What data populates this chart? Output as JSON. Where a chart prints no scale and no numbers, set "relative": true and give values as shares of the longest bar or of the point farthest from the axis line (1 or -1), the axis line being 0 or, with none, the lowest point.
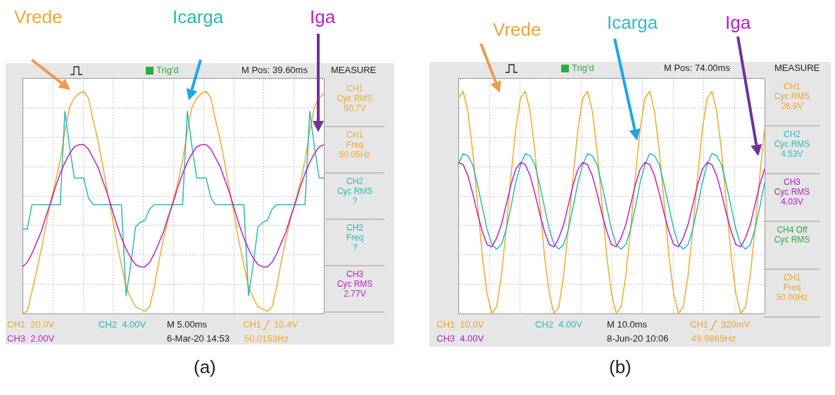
{
  "chart_data": [
    {
      "type": "line",
      "title": "(a)",
      "relative": true,
      "grid": true,
      "categories": [
        null,
        null,
        null,
        null,
        null,
        null,
        null,
        null,
        null,
        null,
        null,
        null,
        null,
        null,
        null,
        null,
        null,
        null,
        null,
        null,
        null,
        null,
        null,
        null,
        null,
        null,
        null,
        null,
        null,
        null,
        null,
        null,
        null,
        null,
        null,
        null,
        null,
        null,
        null,
        null,
        null,
        null,
        null,
        null,
        null,
        null,
        null,
        null,
        null,
        null,
        null,
        null,
        null,
        null,
        null,
        null,
        null,
        null,
        null,
        null,
        null,
        null,
        null,
        null,
        null
      ],
      "series": [
        {
          "name": "Vrede",
          "color": "#f2a92c",
          "values": [
            0,
            0.01,
            0.1,
            0.19,
            0.29,
            0.4,
            0.51,
            0.59,
            0.69,
            0.82,
            0.93,
            0.97,
            0.99,
            1.0,
            0.97,
            0.87,
            0.78,
            0.67,
            0.55,
            0.44,
            0.32,
            0.22,
            0.12,
            0.07,
            0.03,
            0.02,
            0.01,
            0.03,
            0.12,
            0.24,
            0.34,
            0.43,
            0.51,
            0.59,
            0.69,
            0.82,
            0.93,
            0.97,
            0.99,
            1.0,
            0.97,
            0.87,
            0.78,
            0.67,
            0.55,
            0.44,
            0.32,
            0.22,
            0.12,
            0.07,
            0.03,
            0.02,
            0.01,
            0.03,
            0.12,
            0.24,
            0.34,
            0.43,
            0.51,
            0.59,
            0.69,
            0.82,
            0.93,
            0.97,
            0.99
          ]
        },
        {
          "name": "Icarga",
          "color": "#2bb8b8",
          "values": [
            0.38,
            0.38,
            0.49,
            0.49,
            0.49,
            0.49,
            0.49,
            0.49,
            0.49,
            0.91,
            0.75,
            0.61,
            0.61,
            0.61,
            0.52,
            0.49,
            0.49,
            0.49,
            0.49,
            0.49,
            0.49,
            0.49,
            0.08,
            0.22,
            0.39,
            0.41,
            0.42,
            0.47,
            0.49,
            0.49,
            0.49,
            0.49,
            0.49,
            0.49,
            0.49,
            0.91,
            0.75,
            0.61,
            0.61,
            0.61,
            0.52,
            0.49,
            0.49,
            0.49,
            0.49,
            0.49,
            0.49,
            0.49,
            0.08,
            0.22,
            0.39,
            0.41,
            0.42,
            0.47,
            0.49,
            0.49,
            0.49,
            0.49,
            0.49,
            0.49,
            0.49,
            0.91,
            0.75,
            0.61,
            0.61
          ]
        },
        {
          "name": "Iga",
          "color": "#c21fc2",
          "values": [
            0.21,
            0.23,
            0.27,
            0.32,
            0.37,
            0.44,
            0.5,
            0.57,
            0.63,
            0.68,
            0.72,
            0.75,
            0.76,
            0.76,
            0.74,
            0.7,
            0.66,
            0.6,
            0.54,
            0.47,
            0.4,
            0.34,
            0.29,
            0.25,
            0.22,
            0.21,
            0.21,
            0.23,
            0.27,
            0.32,
            0.37,
            0.44,
            0.5,
            0.57,
            0.63,
            0.68,
            0.72,
            0.75,
            0.76,
            0.76,
            0.74,
            0.7,
            0.66,
            0.6,
            0.54,
            0.47,
            0.4,
            0.34,
            0.29,
            0.25,
            0.22,
            0.21,
            0.21,
            0.23,
            0.27,
            0.32,
            0.37,
            0.44,
            0.5,
            0.57,
            0.63,
            0.68,
            0.72,
            0.75,
            0.76
          ]
        }
      ],
      "annotations": [
        "Trig'd",
        "M Pos: 39.60ms",
        "MEASURE",
        "CH1\nCyc RMS\n50.7V",
        "CH1\nFreq\n50.05Hz",
        "CH2\nCyc RMS\n?",
        "CH2\nFreq\n?",
        "CH3\nCyc RMS\n2.77V",
        "CH1  20.0V",
        "CH2  4.00V",
        "M 5.00ms",
        "CH1",
        "10.4V",
        "CH3  2.00V",
        "6-Mar-20 14:53",
        "50.0153Hz"
      ]
    },
    {
      "type": "line",
      "title": "(b)",
      "relative": true,
      "grid": true,
      "categories": [
        null,
        null,
        null,
        null,
        null,
        null,
        null,
        null,
        null,
        null,
        null,
        null,
        null,
        null,
        null,
        null,
        null,
        null,
        null,
        null,
        null,
        null,
        null,
        null,
        null,
        null,
        null,
        null,
        null,
        null,
        null,
        null,
        null,
        null,
        null,
        null,
        null,
        null,
        null,
        null,
        null,
        null,
        null,
        null,
        null,
        null,
        null,
        null,
        null,
        null,
        null,
        null,
        null,
        null,
        null,
        null,
        null,
        null,
        null,
        null,
        null,
        null,
        null,
        null,
        null
      ],
      "series": [
        {
          "name": "Vrede",
          "color": "#f0a536",
          "values": [
            0.97,
            1.0,
            0.91,
            0.73,
            0.5,
            0.26,
            0.09,
            0.0,
            0.03,
            0.17,
            0.38,
            0.62,
            0.83,
            0.97,
            1.0,
            0.91,
            0.73,
            0.5,
            0.26,
            0.09,
            0.0,
            0.03,
            0.17,
            0.38,
            0.62,
            0.83,
            0.97,
            1.0,
            0.91,
            0.73,
            0.5,
            0.26,
            0.09,
            0.0,
            0.03,
            0.17,
            0.38,
            0.62,
            0.83,
            0.97,
            1.0,
            0.91,
            0.73,
            0.5,
            0.26,
            0.09,
            0.0,
            0.03,
            0.17,
            0.38,
            0.62,
            0.83,
            0.97,
            1.0,
            0.91,
            0.73,
            0.5,
            0.26,
            0.09,
            0.0,
            0.03,
            0.17,
            0.38,
            0.62,
            0.83
          ]
        },
        {
          "name": "Icarga",
          "color": "#30bcc6",
          "values": [
            0.67,
            0.72,
            0.71,
            0.67,
            0.58,
            0.48,
            0.38,
            0.31,
            0.29,
            0.31,
            0.38,
            0.48,
            0.59,
            0.67,
            0.72,
            0.71,
            0.67,
            0.58,
            0.48,
            0.38,
            0.31,
            0.29,
            0.31,
            0.38,
            0.48,
            0.59,
            0.67,
            0.72,
            0.71,
            0.67,
            0.58,
            0.48,
            0.38,
            0.31,
            0.29,
            0.31,
            0.38,
            0.48,
            0.59,
            0.67,
            0.72,
            0.71,
            0.67,
            0.58,
            0.48,
            0.38,
            0.31,
            0.29,
            0.31,
            0.38,
            0.48,
            0.59,
            0.67,
            0.72,
            0.71,
            0.67,
            0.58,
            0.48,
            0.38,
            0.31,
            0.29,
            0.31,
            0.38,
            0.48,
            0.59
          ]
        },
        {
          "name": "Iga",
          "color": "#b41fc8",
          "values": [
            0.68,
            0.67,
            0.62,
            0.54,
            0.45,
            0.37,
            0.31,
            0.3,
            0.34,
            0.4,
            0.49,
            0.58,
            0.65,
            0.68,
            0.67,
            0.62,
            0.54,
            0.45,
            0.37,
            0.31,
            0.3,
            0.34,
            0.4,
            0.49,
            0.58,
            0.65,
            0.68,
            0.67,
            0.62,
            0.54,
            0.45,
            0.37,
            0.31,
            0.3,
            0.34,
            0.4,
            0.49,
            0.58,
            0.65,
            0.68,
            0.67,
            0.62,
            0.54,
            0.45,
            0.37,
            0.31,
            0.3,
            0.34,
            0.4,
            0.49,
            0.58,
            0.65,
            0.68,
            0.67,
            0.62,
            0.54,
            0.45,
            0.37,
            0.31,
            0.3,
            0.34,
            0.4,
            0.49,
            0.58,
            0.65
          ]
        }
      ],
      "annotations": [
        "Trig'd",
        "M Pos: 74.00ms",
        "MEASURE",
        "CH1\nCyc RMS\n26.6V",
        "CH2\nCyc RMS\n4.53V",
        "CH3\nCyc RMS\n4.03V",
        "CH4 Off\nCyc RMS",
        "CH1\nFreq\n50.00Hz",
        "CH1  10.0V",
        "CH2  4.00V",
        "M 10.0ms",
        "CH1",
        "320mV",
        "CH3  4.00V",
        "8-Jun-20 10:06",
        "49.9869Hz"
      ]
    }
  ]
}
